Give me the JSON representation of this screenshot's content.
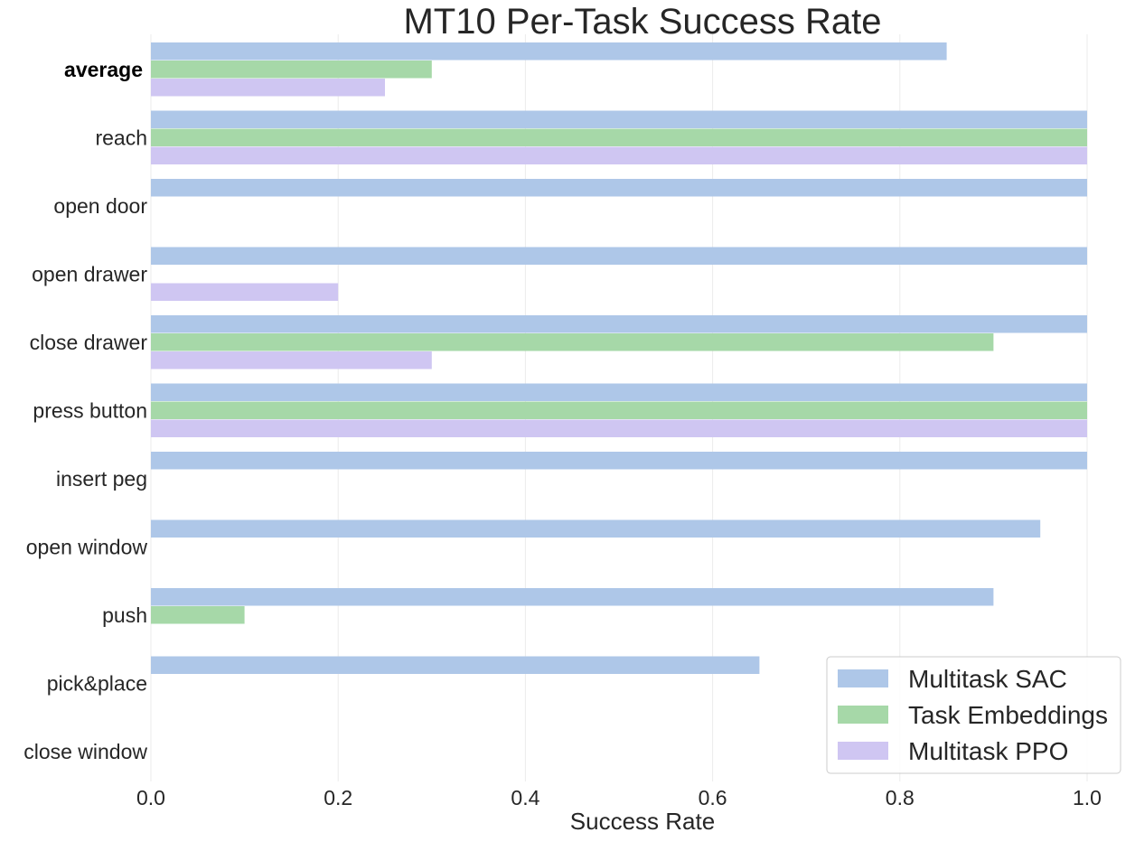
{
  "chart_data": {
    "type": "bar",
    "orientation": "horizontal",
    "title": "MT10 Per-Task Success Rate",
    "xlabel": "Success Rate",
    "ylabel": "",
    "xlim": [
      0.0,
      1.0
    ],
    "xticks": [
      "0.0",
      "0.2",
      "0.4",
      "0.6",
      "0.8",
      "1.0"
    ],
    "grid": "vertical",
    "legend_position": "bottom-right",
    "categories": [
      "average",
      "reach",
      "open door",
      "open drawer",
      "close drawer",
      "press button",
      "insert peg",
      "open window",
      "push",
      "pick&place",
      "close window"
    ],
    "bold_categories": [
      "average"
    ],
    "series": [
      {
        "name": "Multitask SAC",
        "color": "#aec7e8",
        "values": [
          0.85,
          1.0,
          1.0,
          1.0,
          1.0,
          1.0,
          1.0,
          0.95,
          0.9,
          0.65,
          0.0
        ]
      },
      {
        "name": "Task Embeddings",
        "color": "#a6d8a8",
        "values": [
          0.3,
          1.0,
          0.0,
          0.0,
          0.9,
          1.0,
          0.0,
          0.0,
          0.1,
          0.0,
          0.0
        ]
      },
      {
        "name": "Multitask PPO",
        "color": "#cfc6f2",
        "values": [
          0.25,
          1.0,
          0.0,
          0.2,
          0.3,
          1.0,
          0.0,
          0.0,
          0.0,
          0.0,
          0.0
        ]
      }
    ]
  }
}
